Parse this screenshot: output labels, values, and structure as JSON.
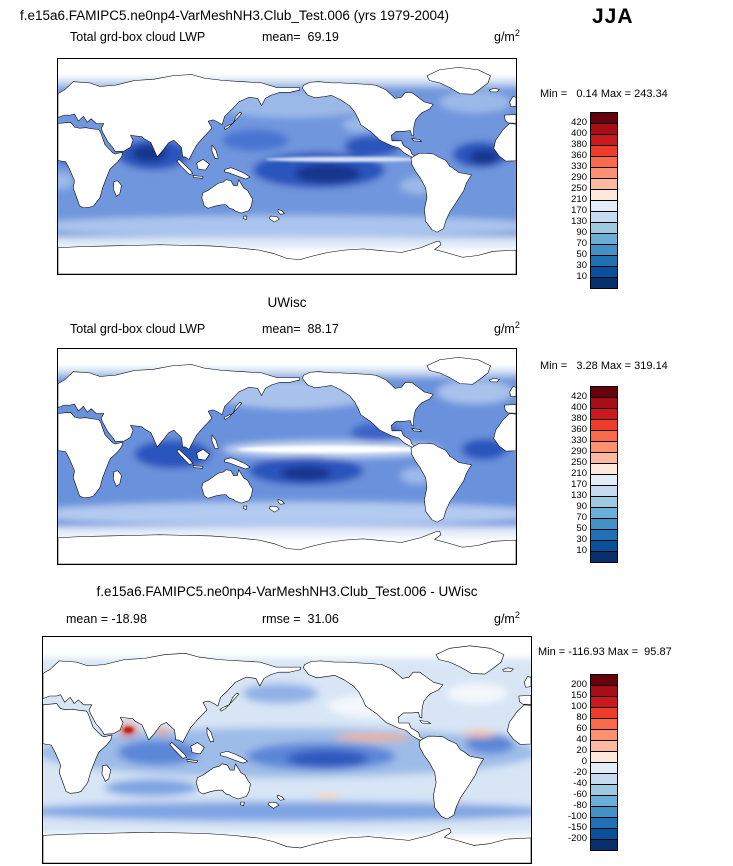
{
  "header": {
    "title": "f.e15a6.FAMIPC5.ne0np4-VarMeshNH3.Club_Test.006 (yrs 1979-2004)",
    "season": "JJA"
  },
  "panels": [
    {
      "variable": "Total grd-box cloud LWP",
      "mean_text": "mean=  69.19",
      "units_base": "g/m",
      "units_exp": "2",
      "minmax_text": "Min =   0.14 Max = 243.34"
    },
    {
      "title": "UWisc",
      "variable": "Total grd-box cloud LWP",
      "mean_text": "mean=  88.17",
      "units_base": "g/m",
      "units_exp": "2",
      "minmax_text": "Min =   3.28 Max = 319.14"
    },
    {
      "title": "f.e15a6.FAMIPC5.ne0np4-VarMeshNH3.Club_Test.006 - UWisc",
      "mean_text": "mean = -18.98",
      "rmse_text": "rmse =  31.06",
      "units_base": "g/m",
      "units_exp": "2",
      "minmax_text": "Min = -116.93 Max =  95.87"
    }
  ],
  "colorbars": {
    "lwp": {
      "labels": [
        420,
        400,
        380,
        360,
        330,
        290,
        250,
        210,
        170,
        130,
        90,
        70,
        50,
        30,
        10
      ],
      "colors": [
        "#67000d",
        "#a50f15",
        "#cb181d",
        "#ef3b2c",
        "#fb6a4a",
        "#fc9272",
        "#fcbba1",
        "#fde8dc",
        "#e3edf8",
        "#c6dbef",
        "#9ecae1",
        "#6baed6",
        "#4292c6",
        "#2171b5",
        "#08519c",
        "#08306b"
      ]
    },
    "diff": {
      "labels": [
        200,
        150,
        100,
        80,
        60,
        40,
        20,
        0,
        -20,
        -40,
        -60,
        -80,
        -100,
        -150,
        -200
      ],
      "colors": [
        "#67000d",
        "#a50f15",
        "#cb181d",
        "#ef3b2c",
        "#fb6a4a",
        "#fc9272",
        "#fcbba1",
        "#fde8dc",
        "#e3edf8",
        "#c6dbef",
        "#9ecae1",
        "#6baed6",
        "#4292c6",
        "#2171b5",
        "#08519c",
        "#08306b"
      ]
    }
  },
  "chart_data": [
    {
      "type": "heatmap",
      "panel": "model",
      "title": "f.e15a6.FAMIPC5.ne0np4-VarMeshNH3.Club_Test.006 (yrs 1979-2004)",
      "variable": "Total grd-box cloud LWP",
      "season": "JJA",
      "units": "g/m2",
      "mean": 69.19,
      "min": 0.14,
      "max": 243.34,
      "contour_levels": [
        10,
        30,
        50,
        70,
        90,
        130,
        170,
        210,
        250,
        290,
        330,
        360,
        380,
        400,
        420
      ],
      "palette_top_to_bottom": [
        "#67000d",
        "#a50f15",
        "#cb181d",
        "#ef3b2c",
        "#fb6a4a",
        "#fc9272",
        "#fcbba1",
        "#fde8dc",
        "#e3edf8",
        "#c6dbef",
        "#9ecae1",
        "#6baed6",
        "#4292c6",
        "#2171b5",
        "#08519c",
        "#08306b"
      ],
      "projection": "global cylindrical equidistant, Pacific-centered",
      "legend_position": "right"
    },
    {
      "type": "heatmap",
      "panel": "observations",
      "title": "UWisc",
      "variable": "Total grd-box cloud LWP",
      "season": "JJA",
      "units": "g/m2",
      "mean": 88.17,
      "min": 3.28,
      "max": 319.14,
      "contour_levels": [
        10,
        30,
        50,
        70,
        90,
        130,
        170,
        210,
        250,
        290,
        330,
        360,
        380,
        400,
        420
      ],
      "palette_top_to_bottom": [
        "#67000d",
        "#a50f15",
        "#cb181d",
        "#ef3b2c",
        "#fb6a4a",
        "#fc9272",
        "#fcbba1",
        "#fde8dc",
        "#e3edf8",
        "#c6dbef",
        "#9ecae1",
        "#6baed6",
        "#4292c6",
        "#2171b5",
        "#08519c",
        "#08306b"
      ],
      "projection": "global cylindrical equidistant, Pacific-centered",
      "legend_position": "right"
    },
    {
      "type": "heatmap",
      "panel": "difference",
      "title": "f.e15a6.FAMIPC5.ne0np4-VarMeshNH3.Club_Test.006 - UWisc",
      "variable": "Total grd-box cloud LWP difference",
      "season": "JJA",
      "units": "g/m2",
      "mean": -18.98,
      "rmse": 31.06,
      "min": -116.93,
      "max": 95.87,
      "contour_levels": [
        -200,
        -150,
        -100,
        -80,
        -60,
        -40,
        -20,
        0,
        20,
        40,
        60,
        80,
        100,
        150,
        200
      ],
      "palette_top_to_bottom": [
        "#67000d",
        "#a50f15",
        "#cb181d",
        "#ef3b2c",
        "#fb6a4a",
        "#fc9272",
        "#fcbba1",
        "#fde8dc",
        "#e3edf8",
        "#c6dbef",
        "#9ecae1",
        "#6baed6",
        "#4292c6",
        "#2171b5",
        "#08519c",
        "#08306b"
      ],
      "projection": "global cylindrical equidistant, Pacific-centered",
      "legend_position": "right"
    }
  ]
}
